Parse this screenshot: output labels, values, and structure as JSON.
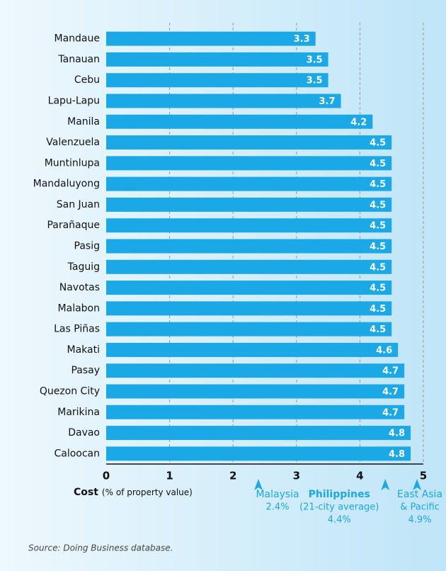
{
  "chart_data": {
    "type": "hbar",
    "categories": [
      "Mandaue",
      "Tanauan",
      "Cebu",
      "Lapu-Lapu",
      "Manila",
      "Valenzuela",
      "Muntinlupa",
      "Mandaluyong",
      "San Juan",
      "Parañaque",
      "Pasig",
      "Taguig",
      "Navotas",
      "Malabon",
      "Las Piñas",
      "Makati",
      "Pasay",
      "Quezon City",
      "Marikina",
      "Davao",
      "Caloocan"
    ],
    "values": [
      3.3,
      3.5,
      3.5,
      3.7,
      4.2,
      4.5,
      4.5,
      4.5,
      4.5,
      4.5,
      4.5,
      4.5,
      4.5,
      4.5,
      4.5,
      4.6,
      4.7,
      4.7,
      4.7,
      4.8,
      4.8
    ],
    "color": "#1ba8e6",
    "xlim": [
      0,
      5
    ],
    "xticks": [
      0,
      1,
      2,
      3,
      4,
      5
    ],
    "grid": true,
    "xlabel": {
      "bold": "Cost",
      "rest": "(% of property value)"
    },
    "annotations": [
      {
        "value": 2.4,
        "lines": [
          "Malaysia"
        ],
        "value_label": "2.4%"
      },
      {
        "value": 4.4,
        "lines": [
          "Philippines",
          "(21-city average)"
        ],
        "value_label": "4.4%"
      },
      {
        "value": 4.9,
        "lines": [
          "East Asia",
          "& Pacific"
        ],
        "value_label": "4.9%"
      }
    ],
    "source": "Source:  Doing Business database."
  }
}
